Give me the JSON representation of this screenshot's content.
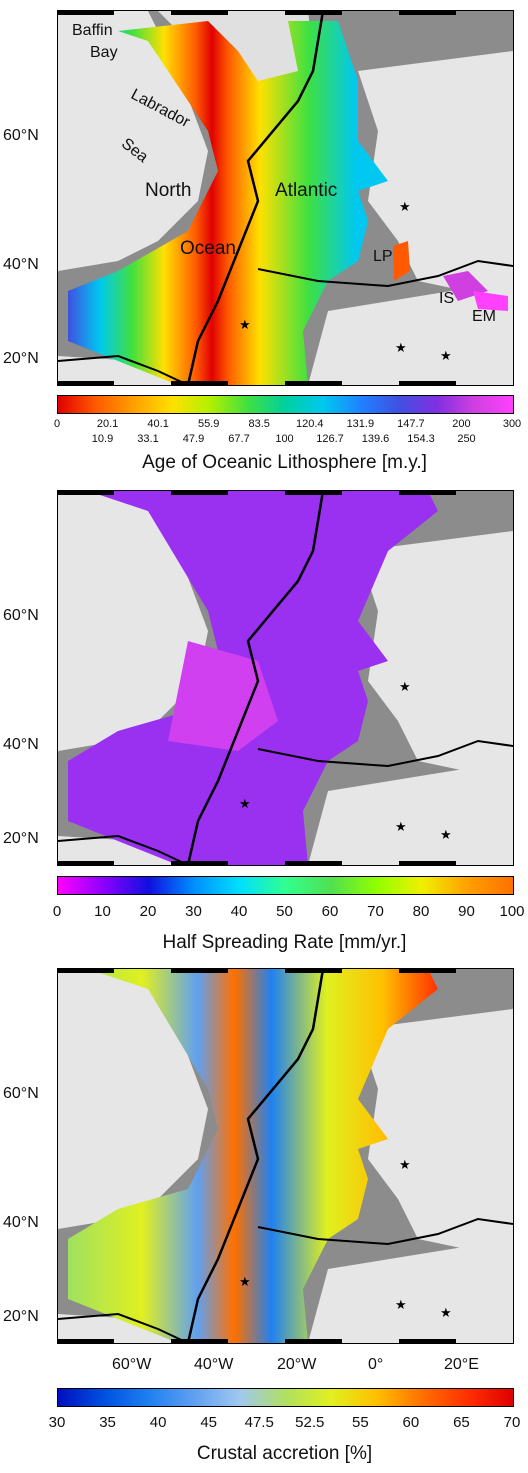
{
  "panels": [
    {
      "id": "age",
      "cbar_title": "Age of Oceanic Lithosphere [m.y.]",
      "cbar_ticks_top": [
        "0",
        "20.1",
        "40.1",
        "55.9",
        "83.5",
        "120.4",
        "131.9",
        "147.7",
        "200",
        "300"
      ],
      "cbar_ticks_bottom": [
        "10.9",
        "33.1",
        "47.9",
        "67.7",
        "100",
        "126.7",
        "139.6",
        "154.3",
        "250"
      ],
      "cbar_colors": [
        "#e00000",
        "#ff5a00",
        "#ffa000",
        "#ffe000",
        "#b4f000",
        "#40e040",
        "#00d0a0",
        "#00c8f0",
        "#2080ff",
        "#4050e0",
        "#8030e0",
        "#d040e0",
        "#ff40ff"
      ],
      "labels": [
        "Baffin",
        "Bay",
        "Labrador",
        "Sea",
        "North",
        "Atlantic",
        "Ocean",
        "LP",
        "IS",
        "EM"
      ]
    },
    {
      "id": "rate",
      "cbar_title": "Half Spreading Rate [mm/yr.]",
      "cbar_ticks": [
        "0",
        "10",
        "20",
        "30",
        "40",
        "50",
        "60",
        "70",
        "80",
        "90",
        "100"
      ],
      "cbar_colors": [
        "#ff00ff",
        "#8c00ff",
        "#1010e0",
        "#0090ff",
        "#00e0ff",
        "#30ff90",
        "#50e050",
        "#90ff00",
        "#f0f000",
        "#ffa000",
        "#ff7000"
      ]
    },
    {
      "id": "accretion",
      "cbar_title": "Crustal accretion [%]",
      "cbar_ticks": [
        "30",
        "35",
        "40",
        "45",
        "47.5",
        "52.5",
        "55",
        "60",
        "65",
        "70"
      ],
      "cbar_colors": [
        "#0010c0",
        "#0050e0",
        "#2080f0",
        "#60a0f0",
        "#a0c8f0",
        "#b0e060",
        "#e0f020",
        "#ffc000",
        "#ff7000",
        "#ff3000",
        "#e00000"
      ]
    }
  ],
  "lat_labels": [
    "60°N",
    "40°N",
    "20°N"
  ],
  "lon_labels": [
    "60°W",
    "40°W",
    "20°W",
    "0°",
    "20°E"
  ]
}
